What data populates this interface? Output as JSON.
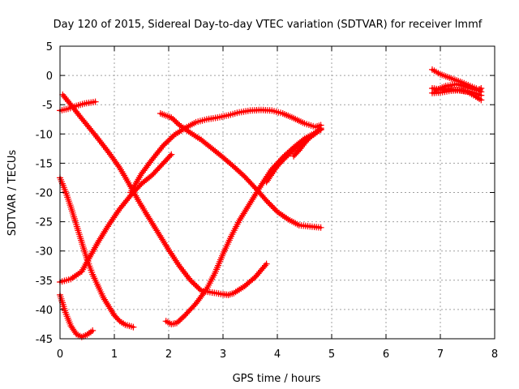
{
  "chart_data": {
    "type": "scatter",
    "title": "Day 120 of 2015, Sidereal Day-to-day VTEC variation (SDTVAR) for receiver lmmf",
    "xlabel": "GPS time / hours",
    "ylabel": "SDTVAR / TECUs",
    "xlim": [
      0,
      8
    ],
    "ylim": [
      -45,
      5
    ],
    "xticks": [
      "0",
      "1",
      "2",
      "3",
      "4",
      "5",
      "6",
      "7",
      "8"
    ],
    "yticks": [
      "5",
      "0",
      "-5",
      "-10",
      "-15",
      "-20",
      "-25",
      "-30",
      "-35",
      "-40",
      "-45"
    ],
    "grid": true,
    "marker": "plus",
    "color": "#ff0000",
    "series": [
      {
        "points": [
          [
            0.0,
            -6.0
          ],
          [
            0.15,
            -5.7
          ],
          [
            0.3,
            -5.2
          ],
          [
            0.45,
            -4.8
          ],
          [
            0.65,
            -4.5
          ]
        ]
      },
      {
        "points": [
          [
            0.05,
            -3.3
          ],
          [
            0.2,
            -5.0
          ],
          [
            0.35,
            -6.8
          ],
          [
            0.5,
            -8.5
          ],
          [
            0.7,
            -10.8
          ],
          [
            0.9,
            -13.2
          ],
          [
            1.1,
            -15.8
          ],
          [
            1.3,
            -19.0
          ],
          [
            1.45,
            -21.5
          ],
          [
            1.6,
            -23.8
          ],
          [
            1.8,
            -26.8
          ],
          [
            2.0,
            -29.8
          ],
          [
            2.2,
            -32.6
          ],
          [
            2.4,
            -35.0
          ],
          [
            2.6,
            -36.8
          ],
          [
            2.8,
            -37.1
          ],
          [
            3.0,
            -37.4
          ],
          [
            3.1,
            -37.5
          ],
          [
            3.2,
            -37.2
          ],
          [
            3.4,
            -36.0
          ],
          [
            3.6,
            -34.4
          ],
          [
            3.8,
            -32.2
          ]
        ]
      },
      {
        "points": [
          [
            0.0,
            -17.5
          ],
          [
            0.1,
            -19.8
          ],
          [
            0.2,
            -22.5
          ],
          [
            0.3,
            -25.5
          ],
          [
            0.4,
            -28.5
          ],
          [
            0.5,
            -31.5
          ],
          [
            0.6,
            -34.0
          ],
          [
            0.7,
            -36.0
          ],
          [
            0.8,
            -38.0
          ],
          [
            0.9,
            -39.5
          ],
          [
            1.0,
            -41.0
          ],
          [
            1.1,
            -42.0
          ],
          [
            1.2,
            -42.6
          ],
          [
            1.35,
            -43.0
          ]
        ]
      },
      {
        "points": [
          [
            0.0,
            -37.5
          ],
          [
            0.1,
            -40.5
          ],
          [
            0.2,
            -42.8
          ],
          [
            0.3,
            -44.2
          ],
          [
            0.4,
            -44.7
          ],
          [
            0.5,
            -44.3
          ],
          [
            0.6,
            -43.6
          ]
        ]
      },
      {
        "points": [
          [
            0.0,
            -35.3
          ],
          [
            0.2,
            -34.8
          ],
          [
            0.4,
            -33.5
          ],
          [
            0.55,
            -31.0
          ],
          [
            0.7,
            -28.5
          ],
          [
            0.9,
            -25.5
          ],
          [
            1.1,
            -22.8
          ],
          [
            1.3,
            -20.5
          ],
          [
            1.5,
            -18.5
          ],
          [
            1.7,
            -17.0
          ],
          [
            1.9,
            -15.0
          ],
          [
            2.05,
            -13.5
          ]
        ]
      },
      {
        "points": [
          [
            1.3,
            -20.0
          ],
          [
            1.5,
            -16.8
          ],
          [
            1.7,
            -14.3
          ],
          [
            1.9,
            -12.0
          ],
          [
            2.1,
            -10.2
          ],
          [
            2.3,
            -9.0
          ],
          [
            2.5,
            -8.0
          ],
          [
            2.7,
            -7.5
          ],
          [
            2.9,
            -7.2
          ],
          [
            3.1,
            -6.8
          ],
          [
            3.3,
            -6.3
          ],
          [
            3.5,
            -6.0
          ],
          [
            3.7,
            -5.9
          ],
          [
            3.9,
            -6.0
          ],
          [
            4.1,
            -6.5
          ],
          [
            4.3,
            -7.3
          ],
          [
            4.5,
            -8.2
          ],
          [
            4.7,
            -8.8
          ],
          [
            4.8,
            -8.5
          ]
        ]
      },
      {
        "points": [
          [
            1.85,
            -6.5
          ],
          [
            2.05,
            -7.2
          ],
          [
            2.2,
            -8.5
          ],
          [
            2.4,
            -9.8
          ],
          [
            2.6,
            -11.0
          ],
          [
            2.8,
            -12.5
          ],
          [
            3.0,
            -14.0
          ],
          [
            3.2,
            -15.6
          ],
          [
            3.4,
            -17.3
          ],
          [
            3.6,
            -19.3
          ],
          [
            3.8,
            -21.4
          ],
          [
            4.0,
            -23.3
          ],
          [
            4.2,
            -24.6
          ],
          [
            4.4,
            -25.6
          ],
          [
            4.6,
            -25.8
          ],
          [
            4.8,
            -26.0
          ]
        ]
      },
      {
        "points": [
          [
            1.95,
            -42.0
          ],
          [
            2.05,
            -42.5
          ],
          [
            2.15,
            -42.3
          ],
          [
            2.3,
            -41.0
          ],
          [
            2.5,
            -39.0
          ],
          [
            2.7,
            -36.5
          ],
          [
            2.85,
            -33.8
          ],
          [
            3.0,
            -30.5
          ],
          [
            3.15,
            -27.5
          ],
          [
            3.3,
            -24.8
          ],
          [
            3.5,
            -21.8
          ],
          [
            3.7,
            -18.8
          ],
          [
            3.9,
            -16.0
          ],
          [
            4.1,
            -14.0
          ],
          [
            4.3,
            -12.3
          ],
          [
            4.5,
            -10.8
          ],
          [
            4.7,
            -9.8
          ],
          [
            4.8,
            -9.2
          ]
        ]
      },
      {
        "points": [
          [
            3.8,
            -18.2
          ],
          [
            3.9,
            -16.8
          ],
          [
            4.0,
            -15.5
          ],
          [
            4.1,
            -14.5
          ],
          [
            4.2,
            -13.6
          ],
          [
            4.3,
            -12.8
          ],
          [
            4.4,
            -12.0
          ],
          [
            4.5,
            -11.2
          ],
          [
            4.6,
            -10.5
          ],
          [
            4.7,
            -9.8
          ],
          [
            4.8,
            -9.3
          ]
        ]
      },
      {
        "points": [
          [
            4.3,
            -13.8
          ],
          [
            4.4,
            -12.8
          ],
          [
            4.5,
            -11.6
          ],
          [
            4.6,
            -10.6
          ],
          [
            4.7,
            -9.9
          ],
          [
            4.8,
            -9.0
          ]
        ]
      },
      {
        "points": [
          [
            6.85,
            1.0
          ],
          [
            7.0,
            0.2
          ],
          [
            7.2,
            -0.5
          ],
          [
            7.4,
            -1.2
          ],
          [
            7.55,
            -1.8
          ],
          [
            7.7,
            -2.4
          ],
          [
            7.75,
            -2.8
          ]
        ]
      },
      {
        "points": [
          [
            6.85,
            -2.2
          ],
          [
            7.0,
            -2.4
          ],
          [
            7.2,
            -2.4
          ],
          [
            7.4,
            -2.6
          ],
          [
            7.55,
            -2.8
          ],
          [
            7.7,
            -3.2
          ],
          [
            7.75,
            -3.4
          ]
        ]
      },
      {
        "points": [
          [
            6.85,
            -3.0
          ],
          [
            7.0,
            -2.9
          ],
          [
            7.2,
            -2.6
          ],
          [
            7.35,
            -2.5
          ],
          [
            7.5,
            -2.8
          ],
          [
            7.65,
            -3.6
          ],
          [
            7.75,
            -4.2
          ]
        ]
      },
      {
        "points": [
          [
            6.9,
            -2.6
          ],
          [
            7.1,
            -1.8
          ],
          [
            7.3,
            -1.5
          ],
          [
            7.5,
            -2.0
          ],
          [
            7.7,
            -2.6
          ],
          [
            7.75,
            -2.2
          ]
        ]
      }
    ]
  }
}
